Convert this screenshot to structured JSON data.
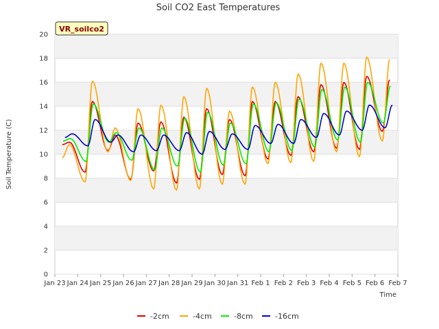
{
  "chart_data": {
    "type": "line",
    "title": "Soil CO2 East Temperatures",
    "xlabel": "Time",
    "ylabel": "Soil Temperature (C)",
    "station_label": "VR_soilco2",
    "x_ticks": [
      "Jan 23",
      "Jan 24",
      "Jan 25",
      "Jan 26",
      "Jan 27",
      "Jan 28",
      "Jan 29",
      "Jan 30",
      "Jan 31",
      "Feb 1",
      "Feb 2",
      "Feb 3",
      "Feb 4",
      "Feb 5",
      "Feb 6",
      "Feb 7"
    ],
    "y_ticks": [
      0,
      2,
      4,
      6,
      8,
      10,
      12,
      14,
      16,
      18,
      20
    ],
    "ylim": [
      0,
      20
    ],
    "xlim_days": [
      0,
      15
    ],
    "grid": true,
    "legend_position": "bottom",
    "day_index": [
      0,
      1,
      2,
      3,
      4,
      5,
      6,
      7,
      8,
      9,
      10,
      11,
      12,
      13,
      14
    ],
    "series": [
      {
        "name": "-2cm",
        "color": "#dd0000",
        "daily_min": [
          10.8,
          8.5,
          10.3,
          7.9,
          8.6,
          7.6,
          7.9,
          8.3,
          8.2,
          9.6,
          9.9,
          10.2,
          10.5,
          10.4,
          11.9
        ],
        "daily_max": [
          11.0,
          14.4,
          11.6,
          12.6,
          12.7,
          13.1,
          13.8,
          12.9,
          14.4,
          14.4,
          14.8,
          15.8,
          16.0,
          16.5,
          16.2
        ]
      },
      {
        "name": "-4cm",
        "color": "#ffa500",
        "daily_min": [
          9.7,
          7.7,
          10.2,
          7.8,
          7.1,
          7.0,
          7.1,
          7.5,
          7.5,
          9.2,
          9.3,
          9.4,
          10.2,
          9.8,
          11.1
        ],
        "daily_max": [
          10.8,
          16.1,
          12.2,
          13.8,
          14.1,
          14.8,
          15.5,
          13.6,
          15.6,
          16.0,
          16.7,
          17.6,
          17.6,
          18.1,
          17.9
        ]
      },
      {
        "name": "-8cm",
        "color": "#00ee00",
        "daily_min": [
          11.1,
          9.4,
          11.0,
          9.5,
          8.7,
          9.0,
          8.5,
          9.1,
          9.2,
          10.2,
          10.3,
          10.6,
          11.2,
          11.0,
          12.6
        ],
        "daily_max": [
          11.3,
          14.2,
          11.8,
          12.2,
          12.2,
          13.0,
          13.5,
          12.6,
          14.2,
          14.3,
          14.6,
          15.4,
          15.6,
          16.0,
          15.7
        ]
      },
      {
        "name": "-16cm",
        "color": "#0000cc",
        "daily_min": [
          11.4,
          10.7,
          11.0,
          10.2,
          10.3,
          10.3,
          10.0,
          10.4,
          10.4,
          10.9,
          10.9,
          11.4,
          11.6,
          12.0,
          12.2
        ],
        "daily_max": [
          11.7,
          12.9,
          11.6,
          11.6,
          11.6,
          11.8,
          11.9,
          11.7,
          12.4,
          12.5,
          12.9,
          13.4,
          13.6,
          14.1,
          14.1
        ]
      }
    ]
  }
}
